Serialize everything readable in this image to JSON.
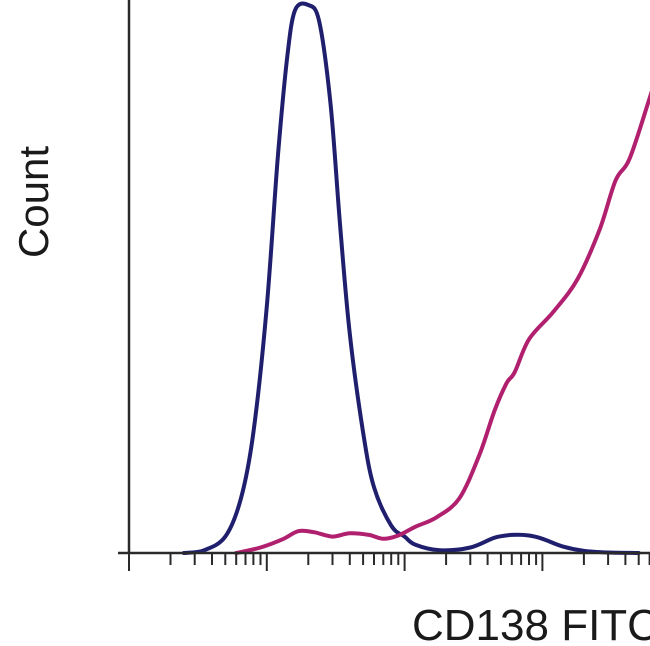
{
  "chart_data": {
    "type": "line",
    "title": "",
    "xlabel": "CD138 FITC",
    "ylabel": "Count",
    "x_scale": "log",
    "xlim": [
      0.1,
      10000
    ],
    "ylim": [
      0,
      100
    ],
    "grid": false,
    "legend": "none",
    "series": [
      {
        "color": "#1f1f6e",
        "points": [
          [
            0.25,
            0
          ],
          [
            0.35,
            0.5
          ],
          [
            0.5,
            3
          ],
          [
            0.65,
            10
          ],
          [
            0.8,
            22
          ],
          [
            1.0,
            45
          ],
          [
            1.2,
            72
          ],
          [
            1.4,
            90
          ],
          [
            1.6,
            99
          ],
          [
            2.0,
            100
          ],
          [
            2.4,
            97
          ],
          [
            2.9,
            82
          ],
          [
            3.4,
            60
          ],
          [
            4.0,
            40
          ],
          [
            5.0,
            22
          ],
          [
            6.0,
            12
          ],
          [
            8.0,
            5
          ],
          [
            10,
            3
          ],
          [
            12,
            1.5
          ],
          [
            18,
            0.5
          ],
          [
            30,
            1
          ],
          [
            45,
            2.8
          ],
          [
            60,
            3.3
          ],
          [
            80,
            3.2
          ],
          [
            100,
            2.6
          ],
          [
            140,
            1.2
          ],
          [
            200,
            0.4
          ],
          [
            300,
            0.1
          ],
          [
            500,
            0
          ]
        ]
      },
      {
        "color": "#b0206e",
        "points": [
          [
            0.6,
            0
          ],
          [
            0.9,
            1
          ],
          [
            1.3,
            2.5
          ],
          [
            1.7,
            4
          ],
          [
            2.2,
            3.8
          ],
          [
            3.0,
            3.0
          ],
          [
            4.0,
            3.6
          ],
          [
            5.5,
            3.3
          ],
          [
            7,
            2.6
          ],
          [
            9,
            3.2
          ],
          [
            12,
            4.8
          ],
          [
            17,
            6.5
          ],
          [
            25,
            10
          ],
          [
            35,
            18
          ],
          [
            45,
            26
          ],
          [
            55,
            31
          ],
          [
            63,
            33
          ],
          [
            80,
            39
          ],
          [
            120,
            44
          ],
          [
            180,
            50
          ],
          [
            260,
            59
          ],
          [
            340,
            68
          ],
          [
            430,
            72
          ],
          [
            600,
            83
          ],
          [
            800,
            93
          ],
          [
            1000,
            100
          ],
          [
            1300,
            104
          ]
        ]
      }
    ]
  }
}
